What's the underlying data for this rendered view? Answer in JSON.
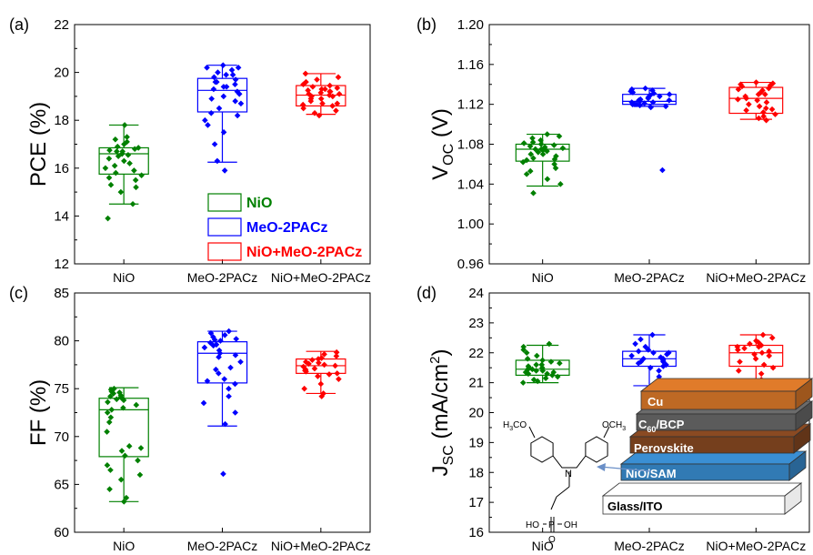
{
  "legend": [
    {
      "label": "NiO",
      "color": "#008000"
    },
    {
      "label": "MeO-2PACz",
      "color": "#0000ff"
    },
    {
      "label": "NiO+MeO-2PACz",
      "color": "#ff0000"
    }
  ],
  "colors": {
    "NiO": "#008000",
    "MeO-2PACz": "#0000ff",
    "NiO+MeO-2PACz": "#ff0000"
  },
  "chart_data": [
    {
      "panel": "(a)",
      "type": "box",
      "categories": [
        "NiO",
        "MeO-2PACz",
        "NiO+MeO-2PACz"
      ],
      "ylabel": "PCE (%)",
      "ylim": [
        12,
        22
      ],
      "yticks": [
        12,
        14,
        16,
        18,
        20,
        22
      ],
      "boxes": [
        {
          "min": 14.5,
          "q1": 15.75,
          "median": 16.6,
          "q3": 16.85,
          "max": 17.8
        },
        {
          "min": 16.25,
          "q1": 18.35,
          "median": 19.25,
          "q3": 19.75,
          "max": 20.3
        },
        {
          "min": 18.25,
          "q1": 18.6,
          "median": 19.05,
          "q3": 19.45,
          "max": 19.95
        }
      ],
      "points": [
        [
          14.5,
          13.9,
          15.0,
          15.2,
          15.3,
          15.5,
          15.6,
          15.7,
          15.8,
          15.9,
          16.0,
          16.1,
          16.2,
          16.3,
          16.4,
          16.5,
          16.55,
          16.6,
          16.7,
          16.75,
          16.8,
          16.85,
          16.9,
          17.0,
          17.1,
          17.2,
          17.3,
          17.8,
          16.6,
          16.7
        ],
        [
          15.9,
          16.3,
          17.0,
          17.5,
          17.8,
          18.0,
          18.2,
          18.3,
          18.5,
          18.7,
          18.9,
          19.0,
          19.1,
          19.2,
          19.3,
          19.4,
          19.5,
          19.6,
          19.7,
          19.8,
          19.9,
          20.0,
          20.1,
          20.2,
          20.3,
          19.4,
          19.6,
          18.8,
          19.9,
          20.2
        ],
        [
          18.2,
          18.3,
          18.4,
          18.5,
          18.6,
          18.65,
          18.7,
          18.8,
          18.9,
          19.0,
          19.05,
          19.1,
          19.15,
          19.2,
          19.25,
          19.3,
          19.35,
          19.4,
          19.45,
          19.5,
          19.6,
          19.7,
          19.8,
          19.95,
          19.0,
          18.9,
          19.2,
          19.3,
          18.7,
          19.1
        ]
      ]
    },
    {
      "panel": "(b)",
      "type": "box",
      "categories": [
        "NiO",
        "MeO-2PACz",
        "NiO+MeO-2PACz"
      ],
      "ylabel": "VOC (V)",
      "ylim": [
        0.96,
        1.2
      ],
      "yticks": [
        "0.96",
        "1.00",
        "1.04",
        "1.08",
        "1.12",
        "1.16",
        "1.20"
      ],
      "boxes": [
        {
          "min": 1.038,
          "q1": 1.063,
          "median": 1.075,
          "q3": 1.08,
          "max": 1.09
        },
        {
          "min": 1.118,
          "q1": 1.12,
          "median": 1.123,
          "q3": 1.13,
          "max": 1.136
        },
        {
          "min": 1.105,
          "q1": 1.111,
          "median": 1.126,
          "q3": 1.137,
          "max": 1.142
        }
      ],
      "points": [
        [
          1.031,
          1.04,
          1.045,
          1.05,
          1.053,
          1.056,
          1.06,
          1.062,
          1.064,
          1.066,
          1.068,
          1.07,
          1.072,
          1.073,
          1.074,
          1.075,
          1.076,
          1.077,
          1.078,
          1.079,
          1.08,
          1.081,
          1.082,
          1.084,
          1.086,
          1.088,
          1.09,
          1.07,
          1.065,
          1.075
        ],
        [
          1.054,
          1.117,
          1.118,
          1.119,
          1.12,
          1.12,
          1.121,
          1.122,
          1.122,
          1.123,
          1.124,
          1.125,
          1.126,
          1.127,
          1.128,
          1.129,
          1.13,
          1.131,
          1.132,
          1.133,
          1.134,
          1.135,
          1.136,
          1.12,
          1.124
        ],
        [
          1.104,
          1.106,
          1.108,
          1.11,
          1.112,
          1.114,
          1.116,
          1.118,
          1.12,
          1.122,
          1.124,
          1.126,
          1.128,
          1.13,
          1.132,
          1.134,
          1.136,
          1.138,
          1.139,
          1.14,
          1.141,
          1.142,
          1.115,
          1.125,
          1.135,
          1.13
        ]
      ]
    },
    {
      "panel": "(c)",
      "type": "box",
      "categories": [
        "NiO",
        "MeO-2PACz",
        "NiO+MeO-2PACz"
      ],
      "ylabel": "FF (%)",
      "ylim": [
        60,
        85
      ],
      "yticks": [
        60,
        65,
        70,
        75,
        80,
        85
      ],
      "boxes": [
        {
          "min": 63.2,
          "q1": 67.9,
          "median": 72.8,
          "q3": 74.0,
          "max": 75.1
        },
        {
          "min": 71.1,
          "q1": 75.6,
          "median": 78.7,
          "q3": 79.9,
          "max": 81.0
        },
        {
          "min": 74.5,
          "q1": 76.6,
          "median": 77.4,
          "q3": 78.1,
          "max": 78.9
        }
      ],
      "points": [
        [
          63.2,
          63.6,
          64.5,
          65.5,
          66.0,
          66.5,
          67.0,
          67.5,
          68.0,
          68.5,
          69.0,
          70.5,
          71.5,
          72.0,
          72.5,
          73.0,
          73.3,
          73.6,
          73.9,
          74.1,
          74.3,
          74.5,
          74.7,
          74.9,
          75.0,
          74.6,
          73.8,
          72.8,
          74.2,
          68.8
        ],
        [
          66.1,
          71.3,
          72.5,
          73.5,
          74.2,
          75.0,
          75.5,
          76.0,
          76.6,
          77.2,
          77.8,
          78.3,
          78.7,
          79.0,
          79.3,
          79.6,
          79.8,
          80.0,
          80.2,
          80.4,
          80.6,
          80.8,
          81.0,
          79.5,
          77.0,
          75.8,
          78.5,
          80.1
        ],
        [
          74.2,
          74.5,
          75.0,
          75.5,
          76.0,
          76.3,
          76.6,
          76.9,
          77.1,
          77.3,
          77.5,
          77.6,
          77.8,
          78.0,
          78.2,
          78.4,
          78.6,
          78.8,
          77.0,
          77.4,
          76.5,
          78.1,
          77.7,
          76.8
        ]
      ]
    },
    {
      "panel": "(d)",
      "type": "box",
      "categories": [
        "NiO",
        "MeO-2PACz",
        "NiO+MeO-2PACz"
      ],
      "ylabel": "JSC (mA/cm2)",
      "ylim": [
        16,
        24
      ],
      "yticks": [
        16,
        17,
        18,
        19,
        20,
        21,
        22,
        23,
        24
      ],
      "boxes": [
        {
          "min": 21.0,
          "q1": 21.25,
          "median": 21.45,
          "q3": 21.75,
          "max": 22.25
        },
        {
          "min": 20.9,
          "q1": 21.55,
          "median": 21.8,
          "q3": 22.05,
          "max": 22.6
        },
        {
          "min": 20.85,
          "q1": 21.55,
          "median": 22.0,
          "q3": 22.25,
          "max": 22.6
        }
      ],
      "points": [
        [
          21.0,
          21.05,
          21.1,
          21.15,
          21.2,
          21.25,
          21.3,
          21.3,
          21.35,
          21.4,
          21.4,
          21.45,
          21.5,
          21.5,
          21.55,
          21.6,
          21.65,
          21.7,
          21.75,
          21.8,
          21.9,
          22.0,
          22.1,
          22.2,
          22.3,
          21.45,
          21.35,
          21.6
        ],
        [
          20.85,
          21.0,
          21.2,
          21.4,
          21.5,
          21.55,
          21.6,
          21.65,
          21.7,
          21.75,
          21.8,
          21.85,
          21.9,
          21.95,
          22.0,
          22.05,
          22.1,
          22.2,
          22.3,
          22.45,
          22.6,
          21.8,
          21.7,
          22.0
        ],
        [
          20.8,
          20.9,
          21.1,
          21.3,
          21.5,
          21.6,
          21.7,
          21.8,
          21.9,
          22.0,
          22.05,
          22.1,
          22.15,
          22.2,
          22.25,
          22.3,
          22.35,
          22.4,
          22.5,
          22.6,
          21.4,
          21.95,
          22.2
        ]
      ]
    }
  ],
  "inset": {
    "layers": [
      "Cu",
      "C60/BCP",
      "Perovskite",
      "NiO/SAM",
      "Glass/ITO"
    ],
    "layer_colors": [
      "#e07b2a",
      "#6b6b6b",
      "#8a4a22",
      "#3a8fd4",
      "#ffffff"
    ],
    "molecule": {
      "ome_left": "H3CO",
      "ome_right": "OCH3",
      "n": "N",
      "ho_left": "HO",
      "p": "P",
      "oh_right": "OH",
      "o": "O"
    }
  }
}
